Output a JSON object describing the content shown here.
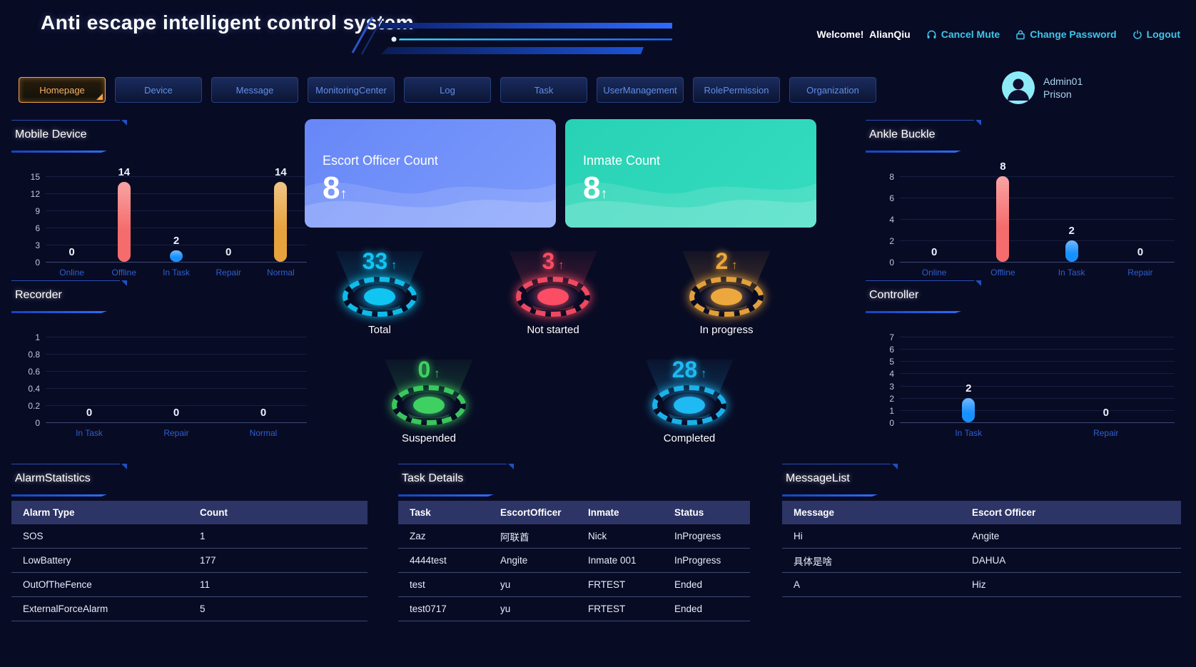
{
  "header": {
    "title": "Anti escape intelligent control system",
    "welcome_label": "Welcome!",
    "username": "AlianQiu",
    "cancel_mute": "Cancel Mute",
    "change_password": "Change Password",
    "logout": "Logout"
  },
  "nav": {
    "tabs": [
      {
        "label": "Homepage",
        "active": true
      },
      {
        "label": "Device",
        "active": false
      },
      {
        "label": "Message",
        "active": false
      },
      {
        "label": "MonitoringCenter",
        "active": false
      },
      {
        "label": "Log",
        "active": false
      },
      {
        "label": "Task",
        "active": false
      },
      {
        "label": "UserManagement",
        "active": false
      },
      {
        "label": "RolePermission",
        "active": false
      },
      {
        "label": "Organization",
        "active": false
      }
    ],
    "user": {
      "name": "Admin01",
      "org": "Prison"
    }
  },
  "icons": {
    "up_arrow": "↑"
  },
  "cards": [
    {
      "title": "Escort Officer Count",
      "value": "8",
      "color_start": "#6787f7",
      "color_end": "#7c9bfc"
    },
    {
      "title": "Inmate Count",
      "value": "8",
      "color_start": "#28d2b4",
      "color_end": "#35dcc0"
    }
  ],
  "gauges": [
    {
      "label": "Total",
      "value": "33",
      "color": "#11c5f2"
    },
    {
      "label": "Not started",
      "value": "3",
      "color": "#fb4d64"
    },
    {
      "label": "In progress",
      "value": "2",
      "color": "#eda83d"
    },
    {
      "label": "Suspended",
      "value": "0",
      "color": "#3ed161"
    },
    {
      "label": "Completed",
      "value": "28",
      "color": "#1fb9f3"
    }
  ],
  "chart_data": [
    {
      "type": "bar",
      "title": "Mobile Device",
      "categories": [
        "Online",
        "Offline",
        "In Task",
        "Repair",
        "Normal"
      ],
      "values": [
        0,
        14,
        2,
        0,
        14
      ],
      "bar_colors": [
        "#1890ff",
        "#f56c6c",
        "#1890ff",
        "#1890ff",
        "#e6a23c"
      ],
      "xlabel": "",
      "ylabel": "",
      "ylim": [
        0,
        15
      ],
      "yticks": [
        0,
        3,
        6,
        9,
        12,
        15
      ],
      "grid": true,
      "legend": "none"
    },
    {
      "type": "bar",
      "title": "Recorder",
      "categories": [
        "In Task",
        "Repair",
        "Normal"
      ],
      "values": [
        0,
        0,
        0
      ],
      "bar_colors": [
        "#1890ff",
        "#1890ff",
        "#e6a23c"
      ],
      "xlabel": "",
      "ylabel": "",
      "ylim": [
        0,
        1
      ],
      "yticks": [
        0,
        0.2,
        0.4,
        0.6,
        0.8,
        1
      ],
      "grid": true,
      "legend": "none"
    },
    {
      "type": "bar",
      "title": "Ankle Buckle",
      "categories": [
        "Online",
        "Offline",
        "In Task",
        "Repair"
      ],
      "values": [
        0,
        8,
        2,
        0
      ],
      "bar_colors": [
        "#1890ff",
        "#f56c6c",
        "#1890ff",
        "#1890ff"
      ],
      "xlabel": "",
      "ylabel": "",
      "ylim": [
        0,
        8
      ],
      "yticks": [
        0,
        2,
        4,
        6,
        8
      ],
      "grid": true,
      "legend": "none"
    },
    {
      "type": "bar",
      "title": "Controller",
      "categories": [
        "In Task",
        "Repair"
      ],
      "values": [
        2,
        0
      ],
      "bar_colors": [
        "#1890ff",
        "#1890ff"
      ],
      "xlabel": "",
      "ylabel": "",
      "ylim": [
        0,
        7
      ],
      "yticks": [
        0,
        1,
        2,
        3,
        4,
        5,
        6,
        7
      ],
      "grid": true,
      "legend": "none"
    }
  ],
  "tables": {
    "alarm": {
      "title": "AlarmStatistics",
      "headers": [
        "Alarm Type",
        "Count"
      ],
      "rows": [
        [
          "SOS",
          "1"
        ],
        [
          "LowBattery",
          "177"
        ],
        [
          "OutOfTheFence",
          "11"
        ],
        [
          "ExternalForceAlarm",
          "5"
        ]
      ]
    },
    "task": {
      "title": "Task Details",
      "headers": [
        "Task",
        "EscortOfficer",
        "Inmate",
        "Status"
      ],
      "rows": [
        [
          "Zaz",
          "阿联酋",
          "Nick",
          "InProgress"
        ],
        [
          "4444test",
          "Angite",
          "Inmate 001",
          "InProgress"
        ],
        [
          "test",
          "yu",
          "FRTEST",
          "Ended"
        ],
        [
          "test0717",
          "yu",
          "FRTEST",
          "Ended"
        ]
      ]
    },
    "message": {
      "title": "MessageList",
      "headers": [
        "Message",
        "Escort Officer"
      ],
      "rows": [
        [
          "Hi",
          "Angite"
        ],
        [
          "具体是啥",
          "DAHUA"
        ],
        [
          "A",
          "Hiz"
        ]
      ]
    }
  }
}
